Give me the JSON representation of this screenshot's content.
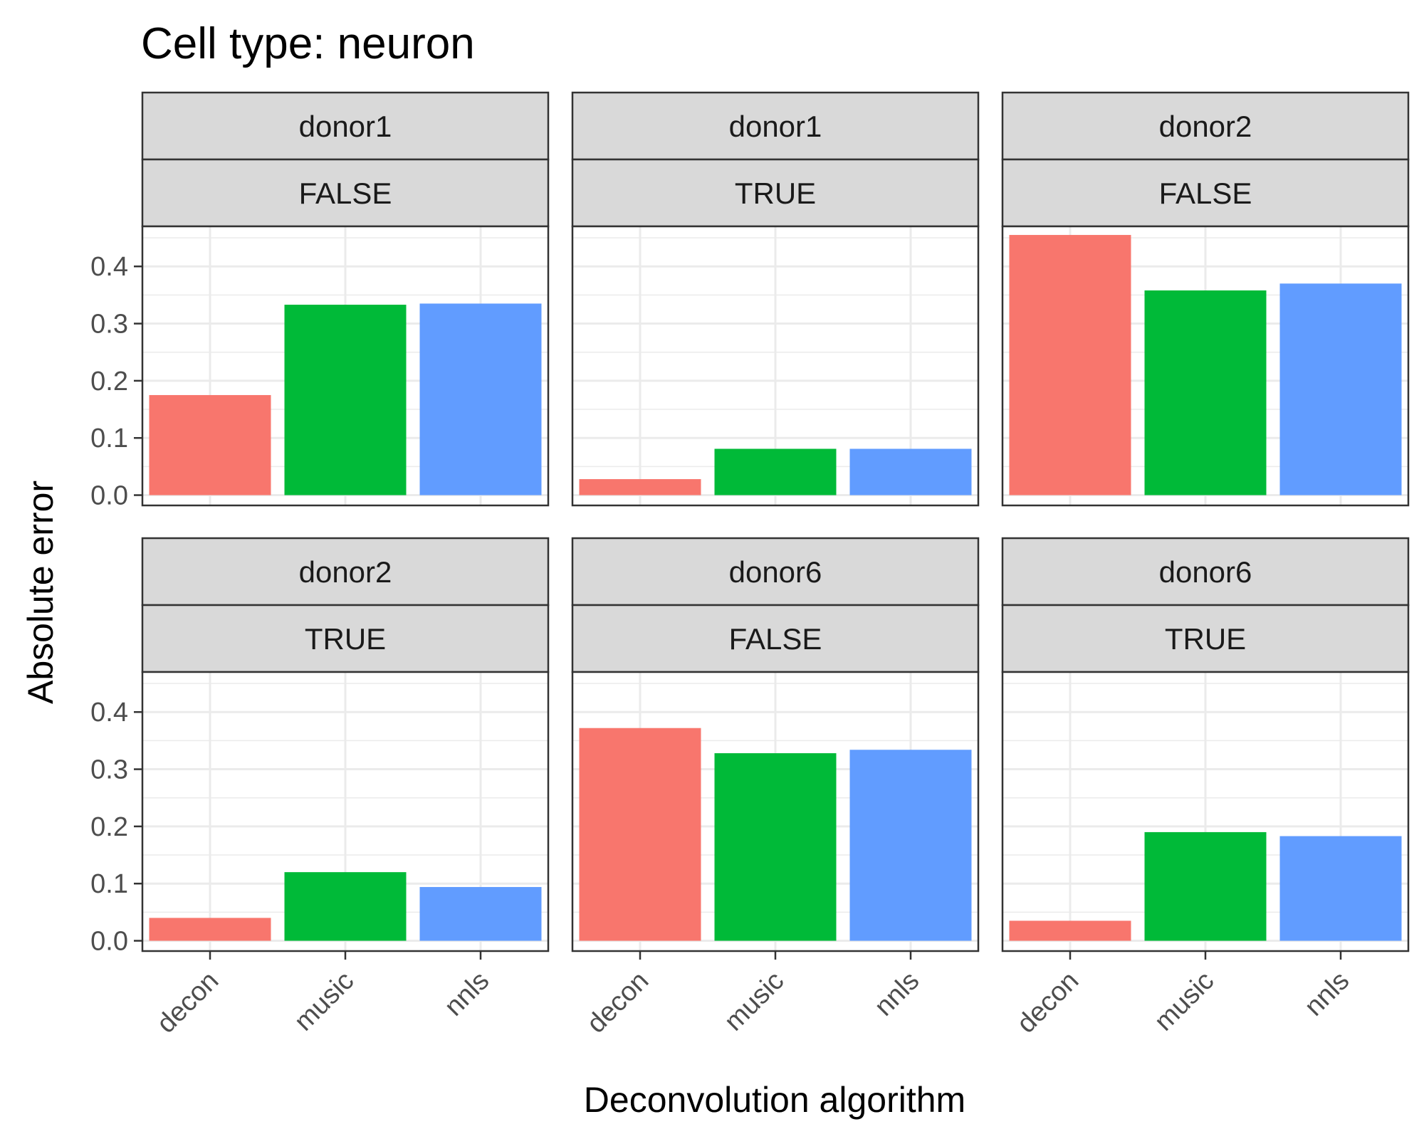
{
  "chart_data": {
    "type": "bar",
    "title": "Cell type: neuron",
    "xlabel": "Deconvolution algorithm",
    "ylabel": "Absolute error",
    "categories": [
      "decon",
      "music",
      "nnls"
    ],
    "colors": [
      "#F8766D",
      "#00BA38",
      "#619CFF"
    ],
    "ylim": [
      -0.018,
      0.47
    ],
    "yticks": [
      0.0,
      0.1,
      0.2,
      0.3,
      0.4
    ],
    "ytick_labels": [
      "0.0",
      "0.1",
      "0.2",
      "0.3",
      "0.4"
    ],
    "grid": true,
    "legend": "none",
    "facet_layout": "2 rows x 3 columns",
    "panels": [
      {
        "strip_top": "donor1",
        "strip_bottom": "FALSE",
        "values": [
          0.175,
          0.333,
          0.335
        ]
      },
      {
        "strip_top": "donor1",
        "strip_bottom": "TRUE",
        "values": [
          0.028,
          0.081,
          0.081
        ]
      },
      {
        "strip_top": "donor2",
        "strip_bottom": "FALSE",
        "values": [
          0.455,
          0.358,
          0.37
        ]
      },
      {
        "strip_top": "donor2",
        "strip_bottom": "TRUE",
        "values": [
          0.04,
          0.12,
          0.094
        ]
      },
      {
        "strip_top": "donor6",
        "strip_bottom": "FALSE",
        "values": [
          0.372,
          0.328,
          0.334
        ]
      },
      {
        "strip_top": "donor6",
        "strip_bottom": "TRUE",
        "values": [
          0.035,
          0.19,
          0.183
        ]
      }
    ]
  }
}
